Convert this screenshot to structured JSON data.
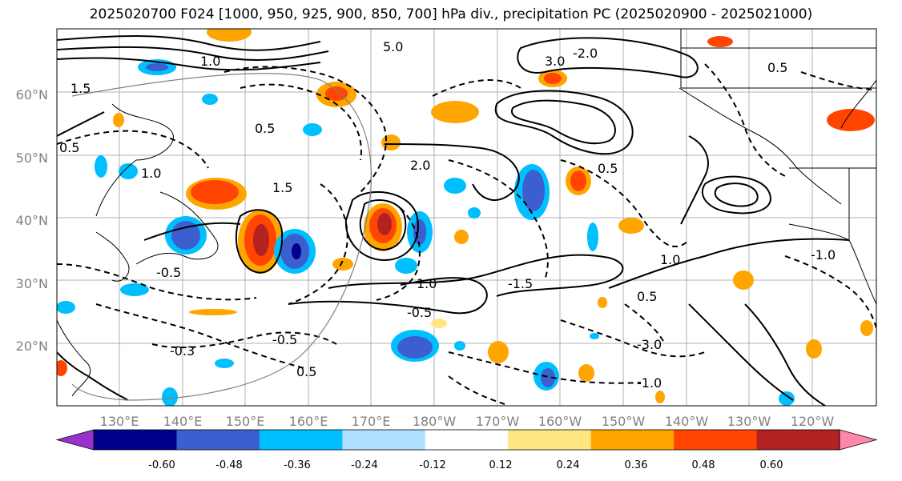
{
  "title": "2025020700 F024 [1000, 950, 925, 900, 850, 700] hPa div., precipitation PC (2025020900 - 2025021000)",
  "map": {
    "lat_ticks": [
      "20°N",
      "30°N",
      "40°N",
      "50°N",
      "60°N"
    ],
    "lon_ticks": [
      "130°E",
      "140°E",
      "150°E",
      "160°E",
      "170°E",
      "180°W",
      "170°W",
      "160°W",
      "150°W",
      "140°W",
      "130°W",
      "120°W"
    ],
    "contour_labels": [
      "5.0",
      "1.0",
      "1.5",
      "0.5",
      "-0.5",
      "-1.0",
      "-1.5",
      "-2.0",
      "-3.0",
      "2.0",
      "3.0",
      "-0.3"
    ]
  },
  "colorbar": {
    "ticks": [
      "-0.60",
      "-0.48",
      "-0.36",
      "-0.24",
      "-0.12",
      "0.12",
      "0.24",
      "0.36",
      "0.48",
      "0.60"
    ],
    "colors": [
      "#9932cc",
      "#00008b",
      "#3b5fcf",
      "#00bfff",
      "#b0e0ff",
      "#ffffff",
      "#ffe680",
      "#ffa500",
      "#ff4500",
      "#b22222",
      "#ff88aa"
    ]
  }
}
